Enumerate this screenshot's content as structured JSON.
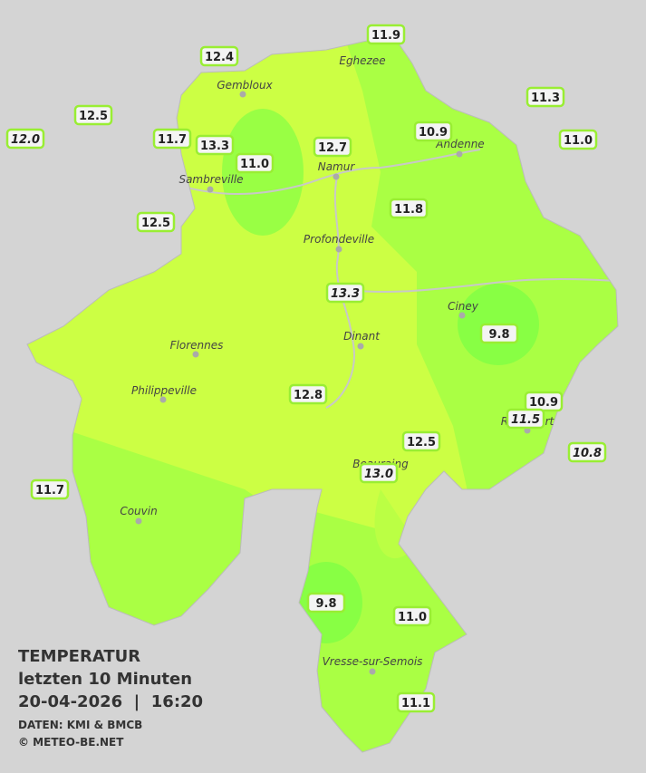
{
  "title": {
    "line1": "TEMPERATUR",
    "line2": "letzten 10 Minuten",
    "line3": "20-04-2026  |  16:20",
    "source": "DATEN: KMI & BMCB",
    "copyright": "© METEO-BE.NET"
  },
  "cities": [
    {
      "name": "Eghezee"
    },
    {
      "name": "Gembloux"
    },
    {
      "name": "Andenne"
    },
    {
      "name": "Namur"
    },
    {
      "name": "Sambreville"
    },
    {
      "name": "Profondeville"
    },
    {
      "name": "Ciney"
    },
    {
      "name": "Dinant"
    },
    {
      "name": "Florennes"
    },
    {
      "name": "Philippeville"
    },
    {
      "name": "Rochefort"
    },
    {
      "name": "Beauraing"
    },
    {
      "name": "Couvin"
    },
    {
      "name": "Vresse-sur-Semois"
    }
  ],
  "stations": [
    {
      "label": "12.4"
    },
    {
      "label": "11.9"
    },
    {
      "label": "11.3"
    },
    {
      "label": "12.5"
    },
    {
      "label": "12.0"
    },
    {
      "label": "11.7"
    },
    {
      "label": "13.3"
    },
    {
      "label": "11.0"
    },
    {
      "label": "12.7"
    },
    {
      "label": "10.9"
    },
    {
      "label": "11.0"
    },
    {
      "label": "11.8"
    },
    {
      "label": "12.5"
    },
    {
      "label": "13.3"
    },
    {
      "label": "9.8"
    },
    {
      "label": "12.8"
    },
    {
      "label": "10.9"
    },
    {
      "label": "11.5"
    },
    {
      "label": "10.8"
    },
    {
      "label": "12.5"
    },
    {
      "label": "13.0"
    },
    {
      "label": "11.7"
    },
    {
      "label": "9.8"
    },
    {
      "label": "11.0"
    },
    {
      "label": "11.1"
    }
  ]
}
